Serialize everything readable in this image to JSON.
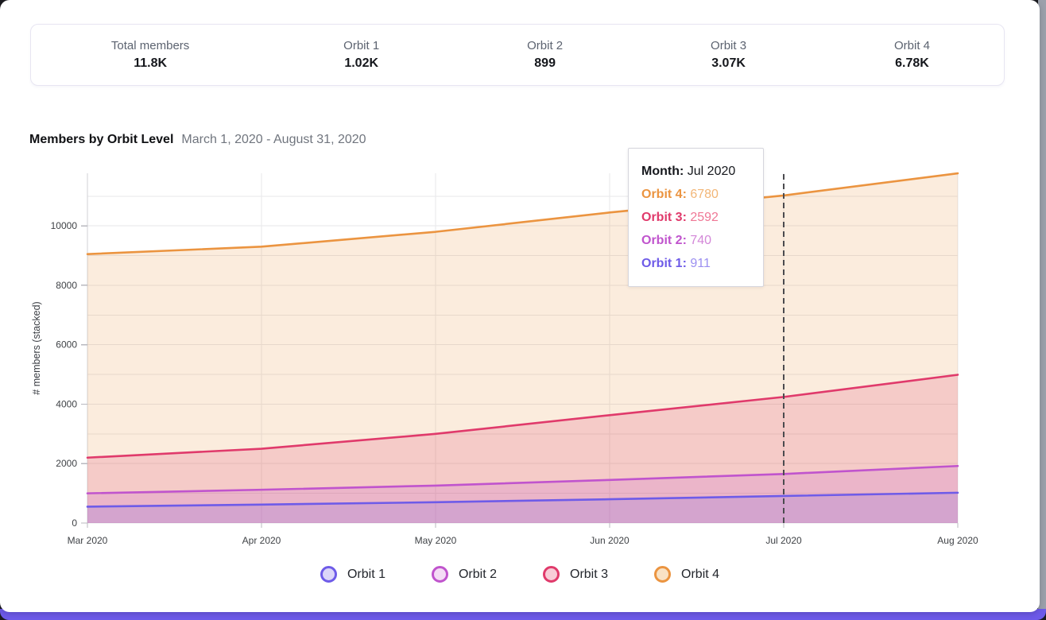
{
  "stats": {
    "items": [
      {
        "label": "Total members",
        "value": "11.8K"
      },
      {
        "label": "Orbit 1",
        "value": "1.02K"
      },
      {
        "label": "Orbit 2",
        "value": "899"
      },
      {
        "label": "Orbit 3",
        "value": "3.07K"
      },
      {
        "label": "Orbit 4",
        "value": "6.78K"
      }
    ]
  },
  "chart": {
    "title": "Members by Orbit Level",
    "date_range": "March 1, 2020 - August 31, 2020"
  },
  "chart_data": {
    "type": "area",
    "stacked": true,
    "title": "Members by Orbit Level",
    "subtitle": "March 1, 2020 - August 31, 2020",
    "xlabel": "",
    "ylabel": "# members (stacked)",
    "x": [
      "Mar 2020",
      "Apr 2020",
      "May 2020",
      "Jun 2020",
      "Jul 2020",
      "Aug 2020"
    ],
    "series": [
      {
        "name": "Orbit 1",
        "values": [
          550,
          620,
          700,
          800,
          911,
          1020
        ],
        "color": "#6e5be8",
        "color_light": "#9b8ff1",
        "swatch_fill": "#dcd6f9"
      },
      {
        "name": "Orbit 2",
        "values": [
          450,
          500,
          560,
          650,
          740,
          899
        ],
        "color": "#c054cd",
        "color_light": "#d387d8",
        "swatch_fill": "#f4dcf5"
      },
      {
        "name": "Orbit 3",
        "values": [
          1200,
          1380,
          1740,
          2180,
          2592,
          3070
        ],
        "color": "#e03a6b",
        "color_light": "#ef7795",
        "swatch_fill": "#f8ccd7"
      },
      {
        "name": "Orbit 4",
        "values": [
          6850,
          6800,
          6800,
          6820,
          6780,
          6780
        ],
        "color": "#eb9440",
        "color_light": "#f2b677",
        "swatch_fill": "#f9e2c4"
      }
    ],
    "ylim": [
      0,
      11770
    ],
    "y_tick_labels": [
      0,
      2000,
      4000,
      6000,
      8000,
      10000
    ],
    "grid_step": 1000,
    "grid_on": true,
    "legend_position": "bottom",
    "highlight_x": "Jul 2020",
    "fill_opacity": 0.18,
    "grid_color": "#e7e7ea",
    "axis_color": "#d2d2d6",
    "tick_text_color": "#3f4246",
    "crosshair_color": "#4b4b4f"
  },
  "tooltip": {
    "month_label": "Month:",
    "month_value": "Jul 2020",
    "rows": [
      {
        "label": "Orbit 4:",
        "value": "6780",
        "color": "#eb9440",
        "value_color": "#f2b677"
      },
      {
        "label": "Orbit 3:",
        "value": "2592",
        "color": "#e03a6b",
        "value_color": "#ef7795"
      },
      {
        "label": "Orbit 2:",
        "value": "740",
        "color": "#c054cd",
        "value_color": "#d387d8"
      },
      {
        "label": "Orbit 1:",
        "value": "911",
        "color": "#6e5be8",
        "value_color": "#9b8ff1"
      }
    ]
  },
  "legend": {
    "items": [
      {
        "label": "Orbit 1"
      },
      {
        "label": "Orbit 2"
      },
      {
        "label": "Orbit 3"
      },
      {
        "label": "Orbit 4"
      }
    ]
  }
}
